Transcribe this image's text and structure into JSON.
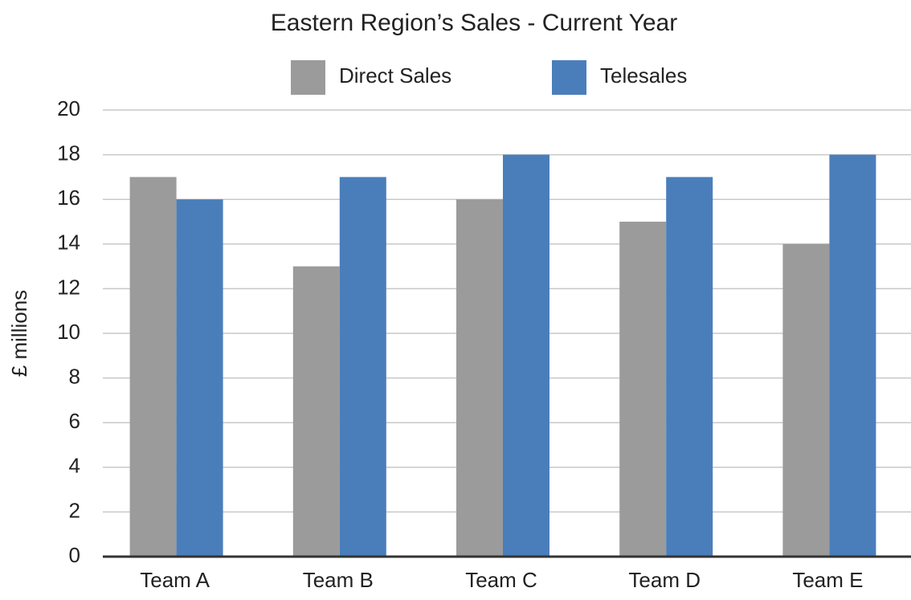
{
  "chart_data": {
    "type": "bar",
    "title": "Eastern Region’s Sales - Current Year",
    "y_label": "£ millions",
    "categories": [
      "Team A",
      "Team B",
      "Team C",
      "Team D",
      "Team E"
    ],
    "series": [
      {
        "name": "Direct Sales",
        "color": "#9b9b9b",
        "values": [
          17,
          13,
          16,
          15,
          14
        ]
      },
      {
        "name": "Telesales",
        "color": "#4a7ebb",
        "values": [
          16,
          17,
          18,
          17,
          18
        ]
      }
    ],
    "ylim": [
      0,
      20
    ],
    "yticks": [
      0,
      2,
      4,
      6,
      8,
      10,
      12,
      14,
      16,
      18,
      20
    ],
    "grid": true,
    "legend": "top"
  }
}
